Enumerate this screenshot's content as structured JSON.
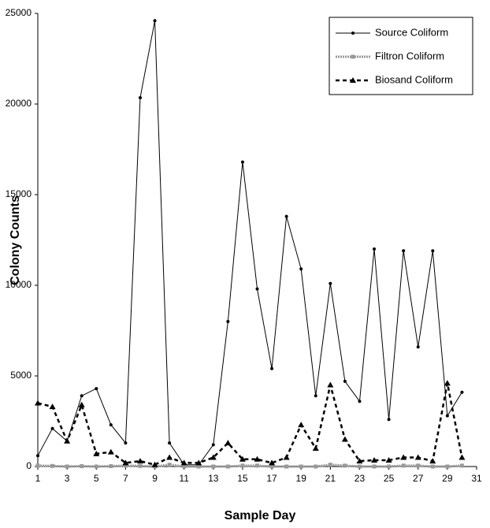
{
  "chart_data": {
    "type": "line",
    "x": [
      1,
      2,
      3,
      4,
      5,
      6,
      7,
      8,
      9,
      10,
      11,
      12,
      13,
      14,
      15,
      16,
      17,
      18,
      19,
      20,
      21,
      22,
      23,
      24,
      25,
      26,
      27,
      28,
      29,
      30
    ],
    "series": [
      {
        "name": "Source Coliform",
        "color": "#000000",
        "marker": "circle",
        "dash": "solid",
        "values": [
          600,
          2100,
          1400,
          3900,
          4300,
          2300,
          1300,
          20350,
          24600,
          1300,
          100,
          100,
          1200,
          8000,
          16800,
          9800,
          5400,
          13800,
          10900,
          3900,
          10100,
          4700,
          3600,
          12000,
          2600,
          11900,
          6600,
          11900,
          2800,
          4100
        ]
      },
      {
        "name": "Filtron Coliform",
        "color": "#999999",
        "marker": "square",
        "dash": "dotted",
        "values": [
          50,
          30,
          0,
          20,
          0,
          20,
          50,
          30,
          0,
          100,
          0,
          0,
          0,
          0,
          50,
          50,
          0,
          0,
          0,
          0,
          100,
          50,
          0,
          0,
          0,
          50,
          50,
          0,
          0,
          50
        ]
      },
      {
        "name": "Biosand Coliform",
        "color": "#000000",
        "marker": "triangle",
        "dash": "dashed",
        "values": [
          3500,
          3300,
          1400,
          3400,
          700,
          800,
          200,
          300,
          100,
          500,
          200,
          200,
          500,
          1300,
          400,
          400,
          200,
          500,
          2300,
          1000,
          4500,
          1500,
          300,
          350,
          350,
          500,
          500,
          300,
          4600,
          500
        ]
      }
    ],
    "xlabel": "Sample Day",
    "ylabel": "Colony Counts",
    "xlim": [
      1,
      31
    ],
    "xticks": [
      1,
      3,
      5,
      7,
      9,
      11,
      13,
      15,
      17,
      19,
      21,
      23,
      25,
      27,
      29,
      31
    ],
    "ylim": [
      0,
      25000
    ],
    "yticks": [
      0,
      5000,
      10000,
      15000,
      20000,
      25000
    ],
    "legend": "upper right"
  }
}
